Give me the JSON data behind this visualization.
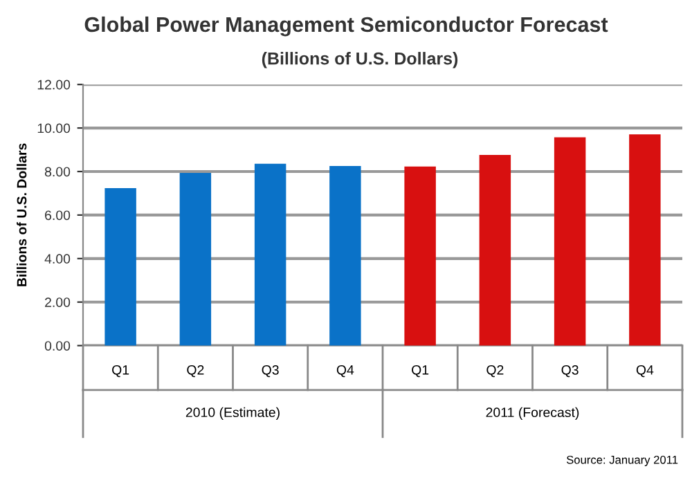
{
  "chart_data": {
    "type": "bar",
    "title": "Global Power Management Semiconductor Forecast",
    "subtitle": "(Billions of U.S. Dollars)",
    "ylabel": "Billions of U.S. Dollars",
    "categories": [
      "Q1",
      "Q2",
      "Q3",
      "Q4",
      "Q1",
      "Q2",
      "Q3",
      "Q4"
    ],
    "series": [
      {
        "color": "#0a72c8",
        "values": [
          7.24,
          7.94,
          8.36,
          8.25,
          null,
          null,
          null,
          null
        ]
      },
      {
        "color": "#d81010",
        "values": [
          null,
          null,
          null,
          null,
          8.23,
          8.76,
          9.57,
          9.71
        ]
      }
    ],
    "ylim": [
      0,
      12
    ],
    "yticks": [
      {
        "value": 0,
        "label": "0.00"
      },
      {
        "value": 2,
        "label": "2.00"
      },
      {
        "value": 4,
        "label": "4.00"
      },
      {
        "value": 6,
        "label": "6.00"
      },
      {
        "value": 8,
        "label": "8.00"
      },
      {
        "value": 10,
        "label": "10.00"
      },
      {
        "value": 12,
        "label": "12.00"
      }
    ],
    "grid": "y",
    "legend": false,
    "annotations": [
      "2010 (Estimate)",
      "2011 (Forecast)",
      "Source: January 2011"
    ]
  }
}
